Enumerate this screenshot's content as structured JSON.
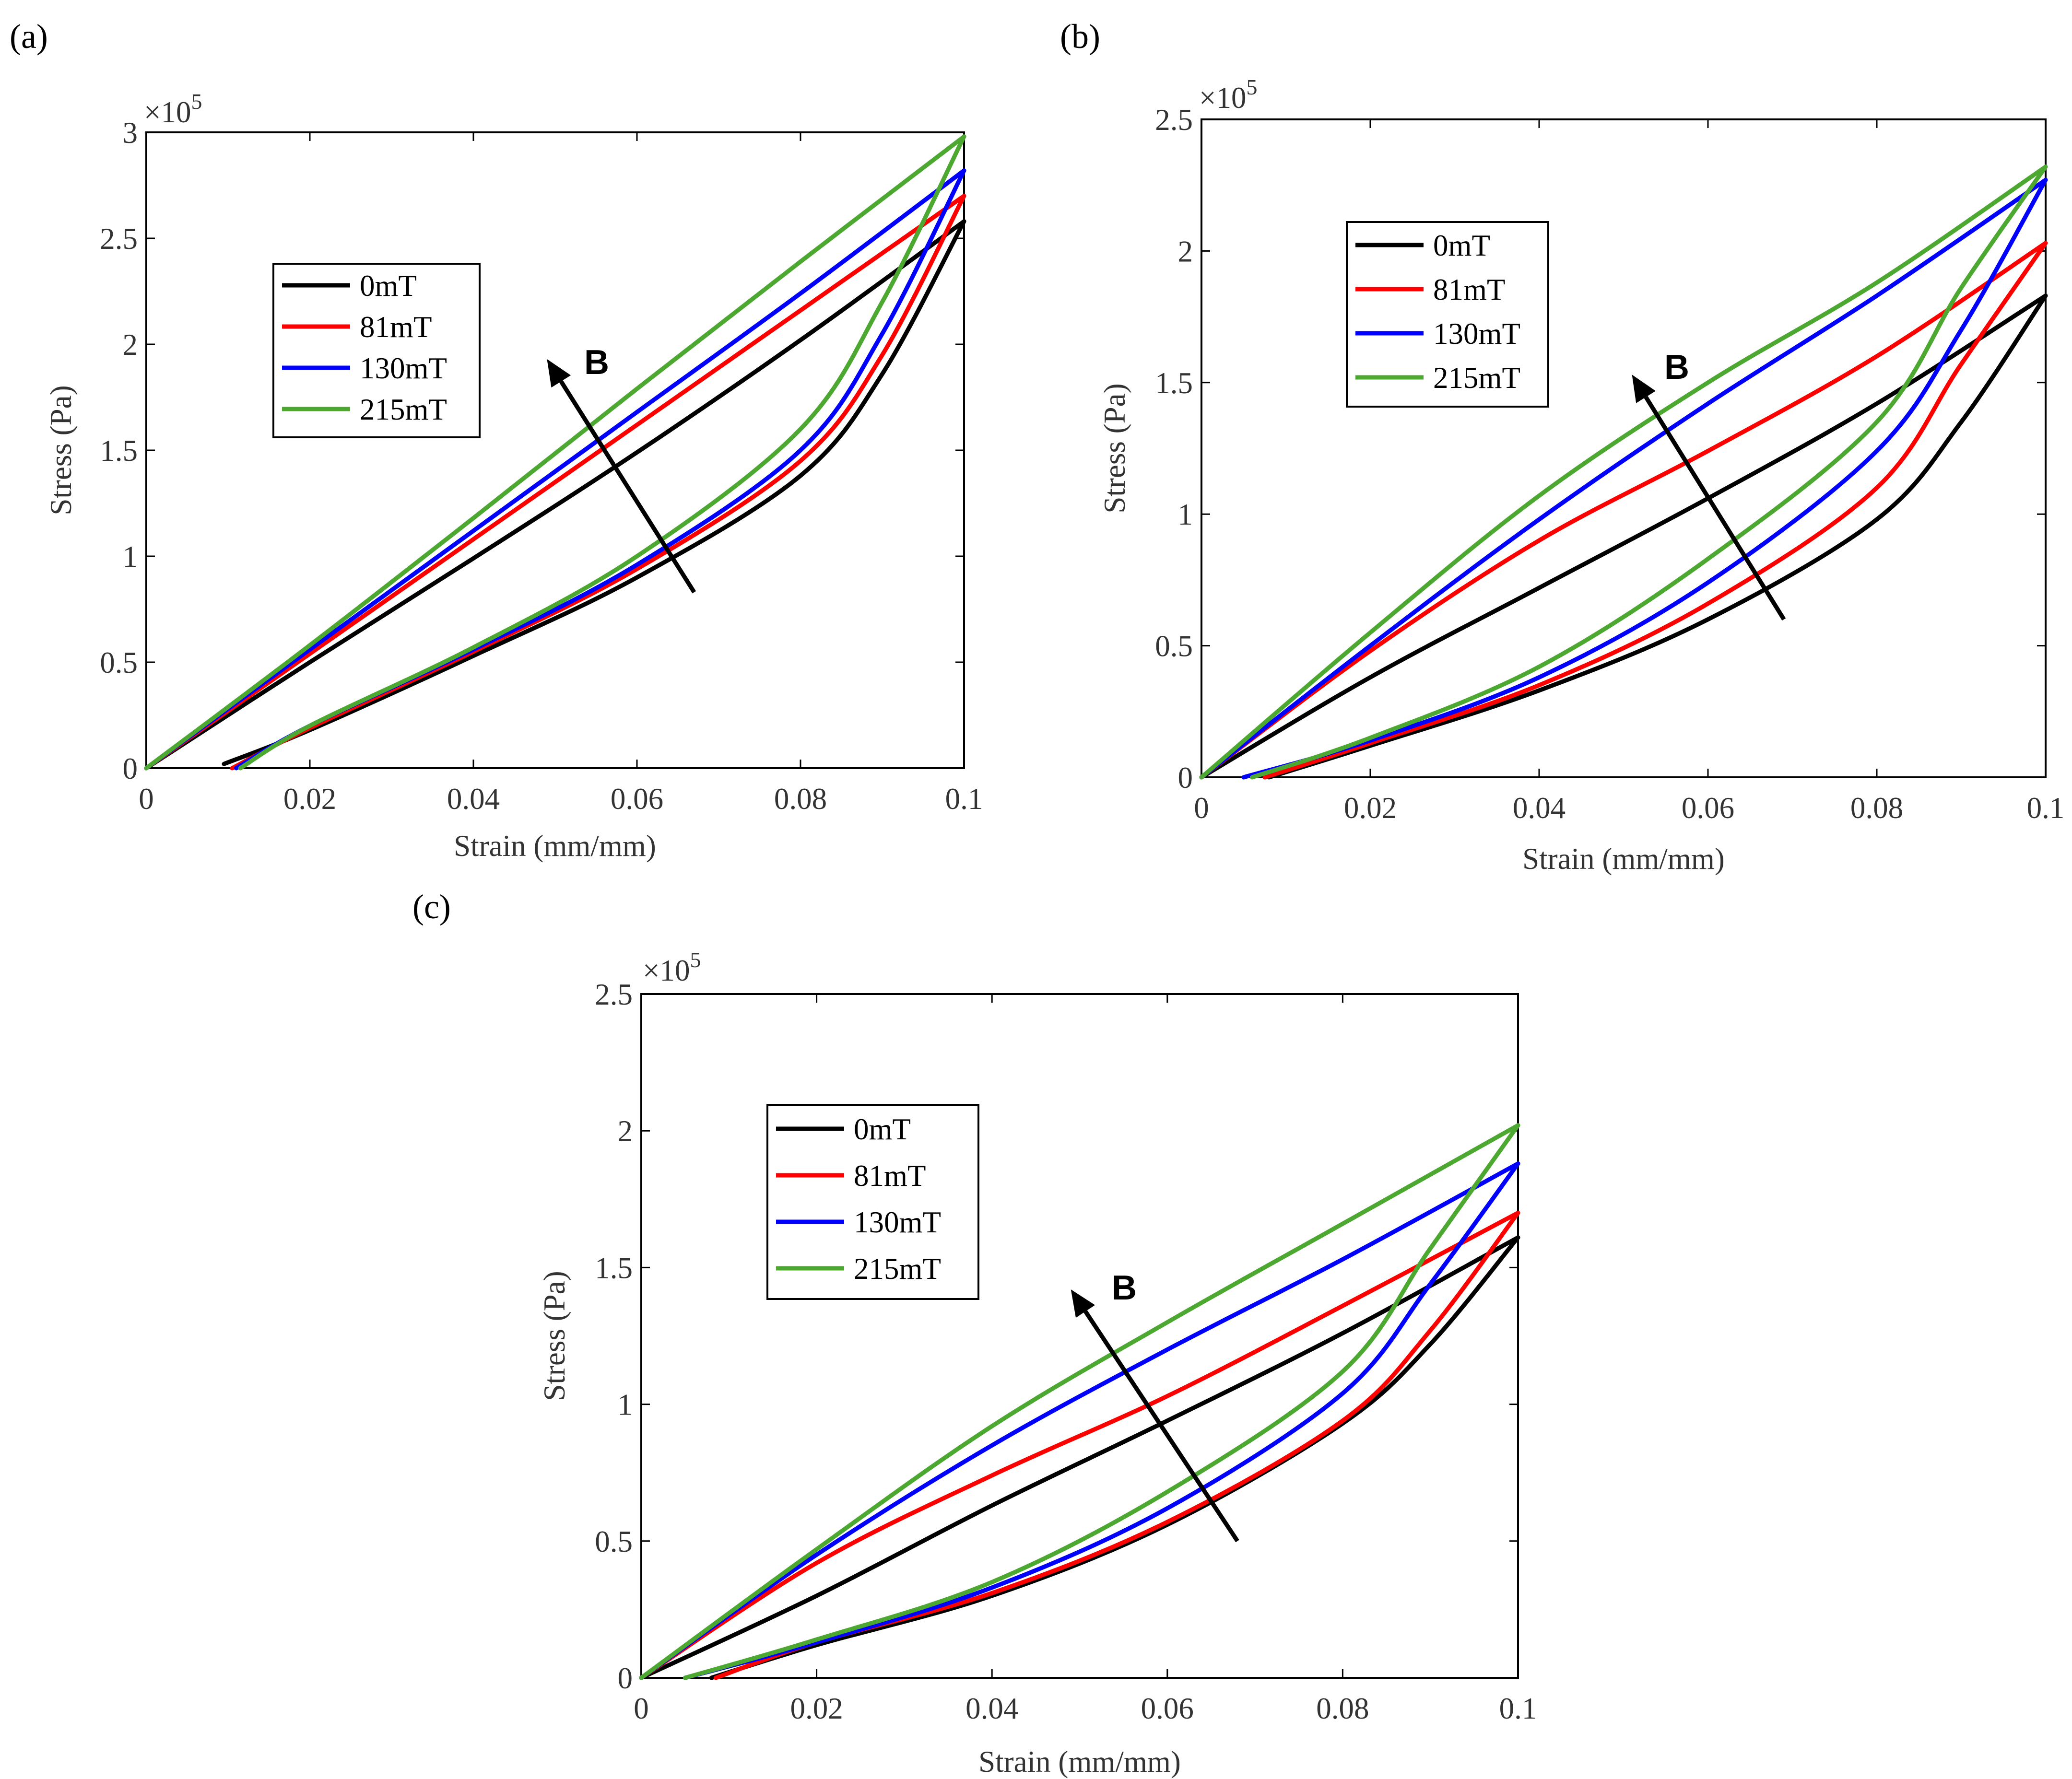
{
  "chart_data": [
    {
      "type": "line",
      "panel": "(a)",
      "xlabel": "Strain (mm/mm)",
      "ylabel": "Stress (Pa)",
      "exponent_label": "×10",
      "exponent_power": "5",
      "xlim": [
        0,
        0.1
      ],
      "ylim": [
        0,
        3
      ],
      "xticks": [
        "0",
        "0.02",
        "0.04",
        "0.06",
        "0.08",
        "0.1"
      ],
      "yticks": [
        "0",
        "0.5",
        "1",
        "1.5",
        "2",
        "2.5",
        "3"
      ],
      "legend_location": "upper-left",
      "arrow_label": "B",
      "arrow_from": [
        0.067,
        0.83
      ],
      "arrow_to": [
        0.049,
        1.93
      ],
      "series": [
        {
          "name": "0mT",
          "color": "#000000",
          "loading": [
            [
              0,
              0
            ],
            [
              0.02,
              0.5
            ],
            [
              0.04,
              0.99
            ],
            [
              0.06,
              1.49
            ],
            [
              0.08,
              2.02
            ],
            [
              0.1,
              2.58
            ]
          ],
          "unloading": [
            [
              0.1,
              2.58
            ],
            [
              0.09,
              1.86
            ],
            [
              0.08,
              1.38
            ],
            [
              0.06,
              0.9
            ],
            [
              0.04,
              0.53
            ],
            [
              0.02,
              0.18
            ],
            [
              0.0095,
              0.02
            ]
          ]
        },
        {
          "name": "81mT",
          "color": "#ff0000",
          "loading": [
            [
              0,
              0
            ],
            [
              0.02,
              0.54
            ],
            [
              0.04,
              1.08
            ],
            [
              0.06,
              1.62
            ],
            [
              0.08,
              2.16
            ],
            [
              0.1,
              2.7
            ]
          ],
          "unloading": [
            [
              0.1,
              2.7
            ],
            [
              0.09,
              1.95
            ],
            [
              0.08,
              1.45
            ],
            [
              0.06,
              0.94
            ],
            [
              0.04,
              0.55
            ],
            [
              0.02,
              0.19
            ],
            [
              0.0105,
              0.0
            ]
          ]
        },
        {
          "name": "130mT",
          "color": "#0000ff",
          "loading": [
            [
              0,
              0
            ],
            [
              0.02,
              0.56
            ],
            [
              0.04,
              1.12
            ],
            [
              0.06,
              1.68
            ],
            [
              0.08,
              2.24
            ],
            [
              0.1,
              2.82
            ]
          ],
          "unloading": [
            [
              0.1,
              2.82
            ],
            [
              0.09,
              2.05
            ],
            [
              0.08,
              1.5
            ],
            [
              0.06,
              0.96
            ],
            [
              0.04,
              0.56
            ],
            [
              0.02,
              0.2
            ],
            [
              0.011,
              0.0
            ]
          ]
        },
        {
          "name": "215mT",
          "color": "#4da832",
          "loading": [
            [
              0,
              0
            ],
            [
              0.02,
              0.58
            ],
            [
              0.04,
              1.18
            ],
            [
              0.06,
              1.79
            ],
            [
              0.08,
              2.39
            ],
            [
              0.1,
              2.98
            ]
          ],
          "unloading": [
            [
              0.1,
              2.98
            ],
            [
              0.09,
              2.2
            ],
            [
              0.08,
              1.6
            ],
            [
              0.06,
              1.0
            ],
            [
              0.04,
              0.57
            ],
            [
              0.02,
              0.2
            ],
            [
              0.0115,
              0.0
            ]
          ]
        }
      ]
    },
    {
      "type": "line",
      "panel": "(b)",
      "xlabel": "Strain (mm/mm)",
      "ylabel": "Stress (Pa)",
      "exponent_label": "×10",
      "exponent_power": "5",
      "xlim": [
        0,
        0.1
      ],
      "ylim": [
        0,
        2.5
      ],
      "xticks": [
        "0",
        "0.02",
        "0.04",
        "0.06",
        "0.08",
        "0.1"
      ],
      "yticks": [
        "0",
        "0.5",
        "1",
        "1.5",
        "2",
        "2.5"
      ],
      "legend_location": "upper-left",
      "arrow_label": "B",
      "arrow_from": [
        0.069,
        0.6
      ],
      "arrow_to": [
        0.051,
        1.53
      ],
      "series": [
        {
          "name": "0mT",
          "color": "#000000",
          "loading": [
            [
              0,
              0
            ],
            [
              0.02,
              0.38
            ],
            [
              0.04,
              0.72
            ],
            [
              0.06,
              1.06
            ],
            [
              0.08,
              1.42
            ],
            [
              0.1,
              1.83
            ]
          ],
          "unloading": [
            [
              0.1,
              1.83
            ],
            [
              0.09,
              1.35
            ],
            [
              0.08,
              0.98
            ],
            [
              0.06,
              0.6
            ],
            [
              0.04,
              0.33
            ],
            [
              0.02,
              0.12
            ],
            [
              0.008,
              0.0
            ]
          ]
        },
        {
          "name": "81mT",
          "color": "#ff0000",
          "loading": [
            [
              0,
              0
            ],
            [
              0.02,
              0.48
            ],
            [
              0.04,
              0.9
            ],
            [
              0.06,
              1.24
            ],
            [
              0.08,
              1.6
            ],
            [
              0.1,
              2.03
            ]
          ],
          "unloading": [
            [
              0.1,
              2.03
            ],
            [
              0.09,
              1.57
            ],
            [
              0.08,
              1.1
            ],
            [
              0.06,
              0.66
            ],
            [
              0.04,
              0.35
            ],
            [
              0.02,
              0.13
            ],
            [
              0.0075,
              0.0
            ]
          ]
        },
        {
          "name": "130mT",
          "color": "#0000ff",
          "loading": [
            [
              0,
              0
            ],
            [
              0.02,
              0.5
            ],
            [
              0.04,
              0.98
            ],
            [
              0.06,
              1.42
            ],
            [
              0.08,
              1.83
            ],
            [
              0.1,
              2.27
            ]
          ],
          "unloading": [
            [
              0.1,
              2.27
            ],
            [
              0.09,
              1.7
            ],
            [
              0.08,
              1.24
            ],
            [
              0.06,
              0.74
            ],
            [
              0.04,
              0.38
            ],
            [
              0.02,
              0.14
            ],
            [
              0.005,
              0.0
            ]
          ]
        },
        {
          "name": "215mT",
          "color": "#4da832",
          "loading": [
            [
              0,
              0
            ],
            [
              0.02,
              0.55
            ],
            [
              0.04,
              1.07
            ],
            [
              0.06,
              1.5
            ],
            [
              0.08,
              1.88
            ],
            [
              0.1,
              2.32
            ]
          ],
          "unloading": [
            [
              0.1,
              2.32
            ],
            [
              0.09,
              1.86
            ],
            [
              0.08,
              1.35
            ],
            [
              0.06,
              0.83
            ],
            [
              0.04,
              0.42
            ],
            [
              0.02,
              0.15
            ],
            [
              0.006,
              0.0
            ]
          ]
        }
      ]
    },
    {
      "type": "line",
      "panel": "(c)",
      "xlabel": "Strain (mm/mm)",
      "ylabel": "Stress (Pa)",
      "exponent_label": "×10",
      "exponent_power": "5",
      "xlim": [
        0,
        0.1
      ],
      "ylim": [
        0,
        2.5
      ],
      "xticks": [
        "0",
        "0.02",
        "0.04",
        "0.06",
        "0.08",
        "0.1"
      ],
      "yticks": [
        "0",
        "0.5",
        "1",
        "1.5",
        "2",
        "2.5"
      ],
      "legend_location": "upper-left",
      "arrow_label": "B",
      "arrow_from": [
        0.068,
        0.5
      ],
      "arrow_to": [
        0.049,
        1.42
      ],
      "series": [
        {
          "name": "0mT",
          "color": "#000000",
          "loading": [
            [
              0,
              0
            ],
            [
              0.02,
              0.3
            ],
            [
              0.04,
              0.63
            ],
            [
              0.06,
              0.94
            ],
            [
              0.08,
              1.26
            ],
            [
              0.1,
              1.61
            ]
          ],
          "unloading": [
            [
              0.1,
              1.61
            ],
            [
              0.09,
              1.22
            ],
            [
              0.08,
              0.93
            ],
            [
              0.06,
              0.56
            ],
            [
              0.04,
              0.3
            ],
            [
              0.02,
              0.12
            ],
            [
              0.008,
              0.0
            ]
          ]
        },
        {
          "name": "81mT",
          "color": "#ff0000",
          "loading": [
            [
              0,
              0
            ],
            [
              0.02,
              0.42
            ],
            [
              0.04,
              0.74
            ],
            [
              0.06,
              1.03
            ],
            [
              0.08,
              1.36
            ],
            [
              0.1,
              1.7
            ]
          ],
          "unloading": [
            [
              0.1,
              1.7
            ],
            [
              0.09,
              1.27
            ],
            [
              0.08,
              0.94
            ],
            [
              0.06,
              0.57
            ],
            [
              0.04,
              0.31
            ],
            [
              0.02,
              0.13
            ],
            [
              0.0085,
              0.0
            ]
          ]
        },
        {
          "name": "130mT",
          "color": "#0000ff",
          "loading": [
            [
              0,
              0
            ],
            [
              0.02,
              0.45
            ],
            [
              0.04,
              0.85
            ],
            [
              0.06,
              1.2
            ],
            [
              0.08,
              1.53
            ],
            [
              0.1,
              1.88
            ]
          ],
          "unloading": [
            [
              0.1,
              1.88
            ],
            [
              0.09,
              1.44
            ],
            [
              0.08,
              1.04
            ],
            [
              0.06,
              0.62
            ],
            [
              0.04,
              0.33
            ],
            [
              0.02,
              0.13
            ],
            [
              0.005,
              0.0
            ]
          ]
        },
        {
          "name": "215mT",
          "color": "#4da832",
          "loading": [
            [
              0,
              0
            ],
            [
              0.02,
              0.47
            ],
            [
              0.04,
              0.92
            ],
            [
              0.06,
              1.3
            ],
            [
              0.08,
              1.66
            ],
            [
              0.1,
              2.02
            ]
          ],
          "unloading": [
            [
              0.1,
              2.02
            ],
            [
              0.09,
              1.57
            ],
            [
              0.08,
              1.12
            ],
            [
              0.06,
              0.68
            ],
            [
              0.04,
              0.35
            ],
            [
              0.02,
              0.14
            ],
            [
              0.005,
              0.0
            ]
          ]
        }
      ]
    }
  ]
}
